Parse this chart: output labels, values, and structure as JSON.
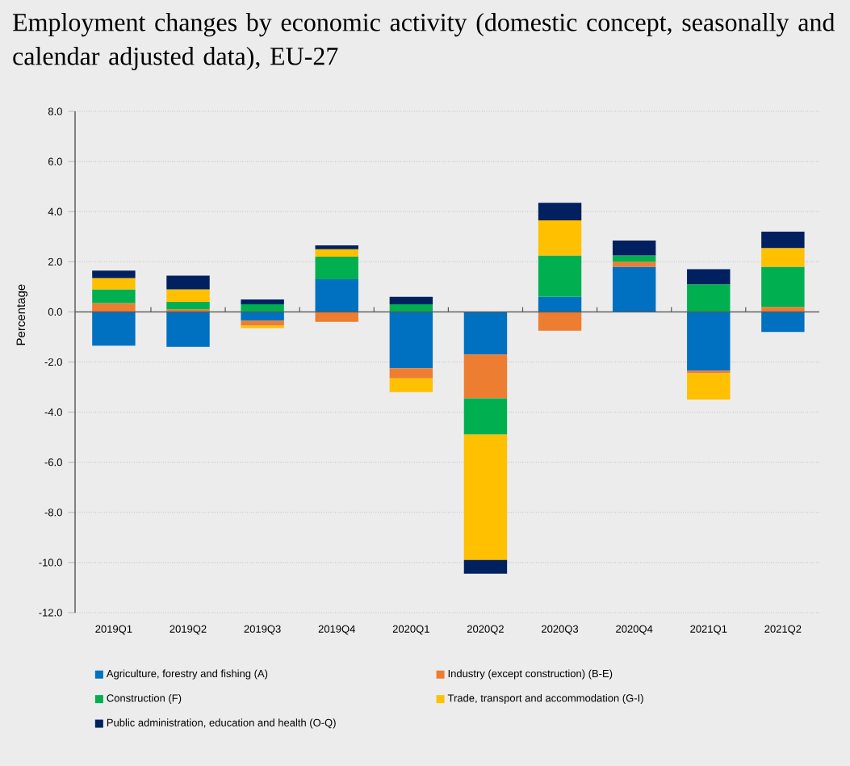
{
  "chart_data": {
    "type": "bar",
    "stacked": true,
    "title": "Employment changes by economic activity (domestic concept, seasonally and calendar adjusted data), EU-27",
    "ylabel": "Percentage",
    "categories": [
      "2019Q1",
      "2019Q2",
      "2019Q3",
      "2019Q4",
      "2020Q1",
      "2020Q2",
      "2020Q3",
      "2020Q4",
      "2021Q1",
      "2021Q2"
    ],
    "series": [
      {
        "name": "Agriculture, forestry and fishing (A)",
        "color": "#0070c0",
        "values": [
          -1.35,
          -1.4,
          -0.35,
          1.3,
          -2.25,
          -1.7,
          0.6,
          1.8,
          -2.35,
          -0.8
        ]
      },
      {
        "name": "Industry (except construction) (B-E)",
        "color": "#ed7d31",
        "values": [
          0.35,
          0.1,
          -0.2,
          -0.4,
          -0.4,
          -1.75,
          -0.75,
          0.2,
          -0.1,
          0.2
        ]
      },
      {
        "name": "Construction (F)",
        "color": "#00b050",
        "values": [
          0.55,
          0.3,
          0.3,
          0.9,
          0.3,
          -1.45,
          1.65,
          0.25,
          1.1,
          1.6
        ]
      },
      {
        "name": "Trade, transport and accommodation (G-I)",
        "color": "#ffc000",
        "values": [
          0.45,
          0.5,
          -0.1,
          0.3,
          -0.55,
          -5.0,
          1.4,
          0,
          -1.05,
          0.75
        ]
      },
      {
        "name": "Public administration, education and health (O-Q)",
        "color": "#002060",
        "values": [
          0.3,
          0.55,
          0.2,
          0.15,
          0.3,
          -0.55,
          0.7,
          0.6,
          0.6,
          0.65
        ]
      }
    ],
    "ylim": [
      -12,
      8
    ],
    "yticks": [
      {
        "value": -12,
        "label": "-12.0"
      },
      {
        "value": -10,
        "label": "-10.0"
      },
      {
        "value": -8,
        "label": "-8.0"
      },
      {
        "value": -6,
        "label": "-6.0"
      },
      {
        "value": -4,
        "label": "-4.0"
      },
      {
        "value": -2,
        "label": "-2.0"
      },
      {
        "value": 0,
        "label": "0.0"
      },
      {
        "value": 2,
        "label": "2.0"
      },
      {
        "value": 4,
        "label": "4.0"
      },
      {
        "value": 6,
        "label": "6.0"
      },
      {
        "value": 8,
        "label": "8.0"
      }
    ],
    "grid": "y",
    "legend": "bottom"
  }
}
